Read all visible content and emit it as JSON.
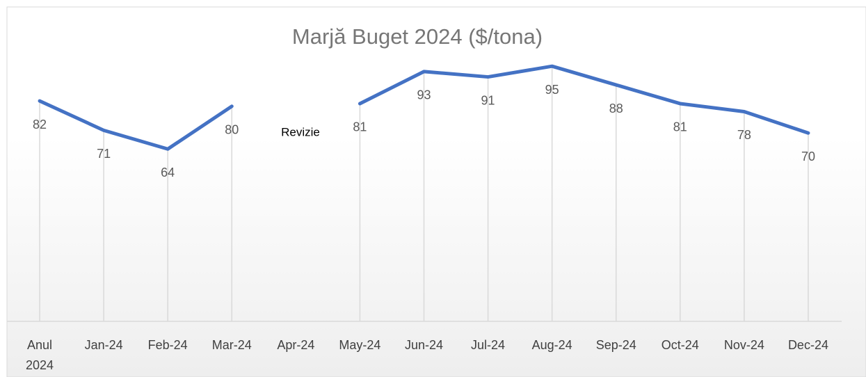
{
  "chart_data": {
    "type": "line",
    "title": "Marjă Buget 2024 ($/tona)",
    "categories": [
      "Anul 2024",
      "Jan-24",
      "Feb-24",
      "Mar-24",
      "Apr-24",
      "May-24",
      "Jun-24",
      "Jul-24",
      "Aug-24",
      "Sep-24",
      "Oct-24",
      "Nov-24",
      "Dec-24"
    ],
    "series": [
      {
        "name": "Marjă Buget 2024",
        "color": "#4472c4",
        "values": [
          82,
          71,
          64,
          80,
          null,
          81,
          93,
          91,
          95,
          88,
          81,
          78,
          70
        ]
      }
    ],
    "annotations": [
      "Revizie"
    ],
    "ylim": [
      0,
      100
    ]
  }
}
